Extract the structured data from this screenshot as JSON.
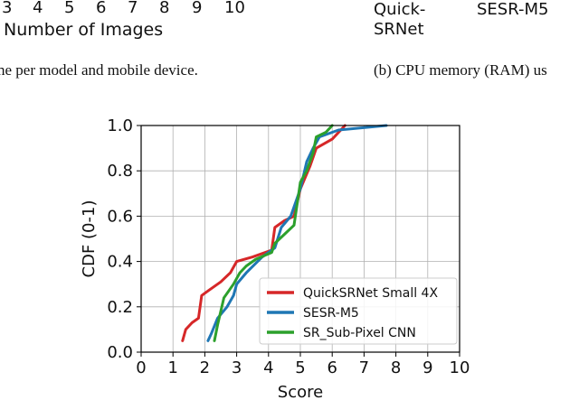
{
  "top_left": {
    "tick_labels": [
      "3",
      "4",
      "5",
      "6",
      "7",
      "8",
      "9",
      "10"
    ],
    "xlabel_fragment": "Number of Images",
    "caption_fragment": "ne per model and mobile device."
  },
  "top_right": {
    "category_line1": [
      "Quick-",
      "SESR-M5"
    ],
    "category_line2": [
      "SRNet"
    ],
    "caption_fragment": "(b)  CPU memory (RAM) us"
  },
  "chart_data": {
    "type": "line",
    "xlabel": "Score",
    "ylabel": "CDF (0-1)",
    "xlim": [
      0,
      10
    ],
    "ylim": [
      0,
      1
    ],
    "xticks": [
      "0",
      "1",
      "2",
      "3",
      "4",
      "5",
      "6",
      "7",
      "8",
      "9",
      "10"
    ],
    "yticks": [
      "0.0",
      "0.2",
      "0.4",
      "0.6",
      "0.8",
      "1.0"
    ],
    "grid": true,
    "legend_position": "lower-right",
    "series": [
      {
        "name": "QuickSRNet Small 4X",
        "color": "#d62728",
        "points": [
          [
            1.3,
            0.05
          ],
          [
            1.4,
            0.1
          ],
          [
            1.6,
            0.13
          ],
          [
            1.8,
            0.15
          ],
          [
            1.9,
            0.25
          ],
          [
            2.1,
            0.27
          ],
          [
            2.5,
            0.31
          ],
          [
            2.8,
            0.35
          ],
          [
            3.0,
            0.4
          ],
          [
            3.5,
            0.42
          ],
          [
            4.1,
            0.45
          ],
          [
            4.2,
            0.55
          ],
          [
            4.5,
            0.58
          ],
          [
            4.8,
            0.6
          ],
          [
            5.0,
            0.72
          ],
          [
            5.3,
            0.82
          ],
          [
            5.5,
            0.9
          ],
          [
            6.0,
            0.94
          ],
          [
            6.4,
            1.0
          ]
        ]
      },
      {
        "name": "SESR-M5",
        "color": "#1f77b4",
        "points": [
          [
            2.1,
            0.05
          ],
          [
            2.2,
            0.08
          ],
          [
            2.4,
            0.15
          ],
          [
            2.7,
            0.2
          ],
          [
            2.9,
            0.25
          ],
          [
            3.0,
            0.3
          ],
          [
            3.3,
            0.35
          ],
          [
            3.8,
            0.42
          ],
          [
            4.0,
            0.44
          ],
          [
            4.2,
            0.46
          ],
          [
            4.4,
            0.55
          ],
          [
            4.7,
            0.6
          ],
          [
            5.0,
            0.72
          ],
          [
            5.2,
            0.84
          ],
          [
            5.4,
            0.9
          ],
          [
            5.6,
            0.95
          ],
          [
            6.2,
            0.98
          ],
          [
            7.7,
            1.0
          ]
        ]
      },
      {
        "name": "SR_Sub-Pixel CNN",
        "color": "#2ca02c",
        "points": [
          [
            2.3,
            0.05
          ],
          [
            2.4,
            0.12
          ],
          [
            2.5,
            0.18
          ],
          [
            2.6,
            0.24
          ],
          [
            2.9,
            0.3
          ],
          [
            3.1,
            0.35
          ],
          [
            3.3,
            0.38
          ],
          [
            3.6,
            0.41
          ],
          [
            4.1,
            0.44
          ],
          [
            4.2,
            0.48
          ],
          [
            4.5,
            0.52
          ],
          [
            4.8,
            0.56
          ],
          [
            5.0,
            0.75
          ],
          [
            5.2,
            0.8
          ],
          [
            5.4,
            0.88
          ],
          [
            5.5,
            0.95
          ],
          [
            5.8,
            0.97
          ],
          [
            6.0,
            1.0
          ]
        ]
      }
    ]
  }
}
